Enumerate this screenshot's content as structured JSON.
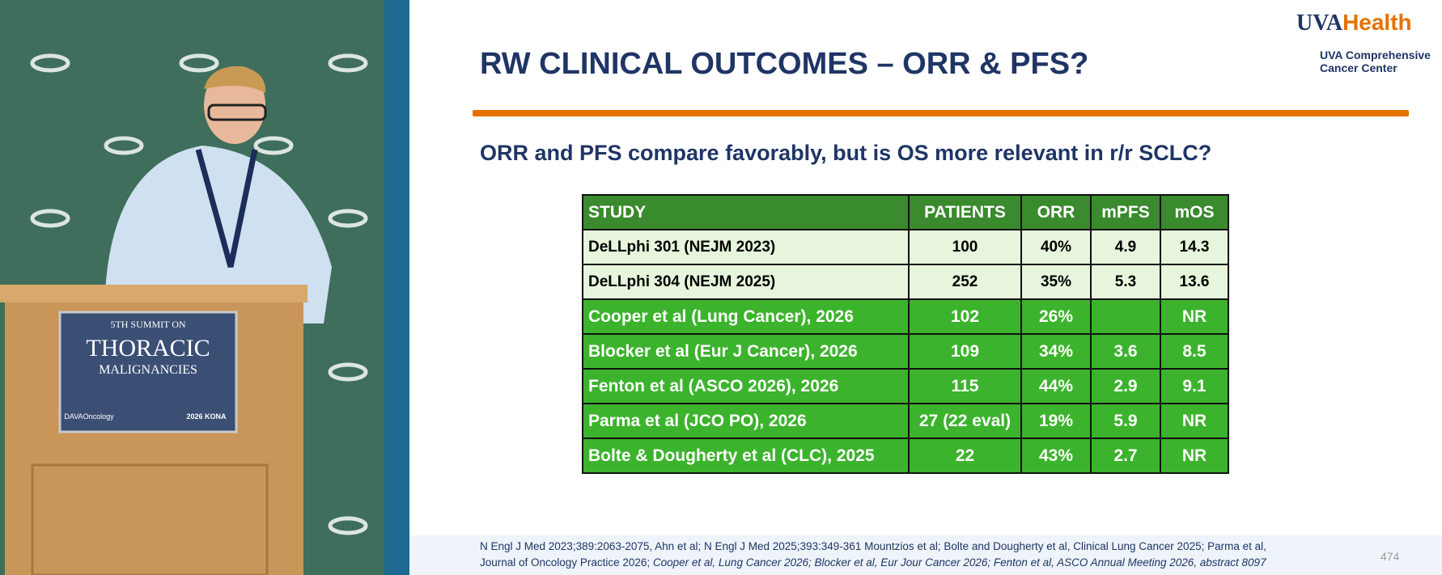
{
  "header": {
    "logo": "UVAHealth",
    "logo_sub": [
      "UVA Comprehensive",
      "Cancer Center"
    ],
    "title": "RW CLINICAL OUTCOMES – ORR & PFS?",
    "subtitle": "ORR and PFS compare favorably, but is OS more relevant in r/r SCLC?"
  },
  "table": {
    "header": [
      "STUDY",
      "PATIENTS",
      "ORR",
      "mPFS",
      "mOS"
    ],
    "rows": [
      [
        "DeLLphi 301 (NEJM 2023)",
        "100",
        "40%",
        "4.9",
        "14.3"
      ],
      [
        "DeLLphi 304 (NEJM 2025)",
        "252",
        "35%",
        "5.3",
        "13.6"
      ],
      [
        "Cooper et al (Lung Cancer), 2026",
        "102",
        "26%",
        null,
        "NR"
      ],
      [
        "Blocker et al (Eur J Cancer), 2026",
        "109",
        "34%",
        "3.6",
        "8.5"
      ],
      [
        "Fenton et al (ASCO 2026), 2026",
        "115",
        "44%",
        "2.9",
        "9.1"
      ],
      [
        "Parma et al (JCO PO), 2026",
        "27 (22 eval)",
        "19%",
        "5.9",
        "NR"
      ],
      [
        "Bolte & Dougherty et al (CLC), 2025",
        "22",
        "43%",
        "2.7",
        "NR"
      ]
    ]
  },
  "footer": {
    "lines": [
      [
        "N Engl J Med 2023;389:2063-2075, Ahn et al; N Engl J Med 2025;393:349-361 Mountzios et al; Bolte and Dougherty et al, Clinical Lung Cancer 2025; Parma et al,"
      ],
      [
        "Journal of Oncology Practice 2026; ",
        "Cooper et al, Lung Cancer 2026; Blocker et al, Eur Jour Cancer 2026; Fenton et al, ASCO Annual Meeting 2026, abstract 8097"
      ]
    ],
    "page_number": "474"
  },
  "podium_sign": [
    "5TH SUMMIT ON",
    "THORACIC",
    "MALIGNANCIES",
    "DAVAOncology",
    "2026 KONA"
  ]
}
